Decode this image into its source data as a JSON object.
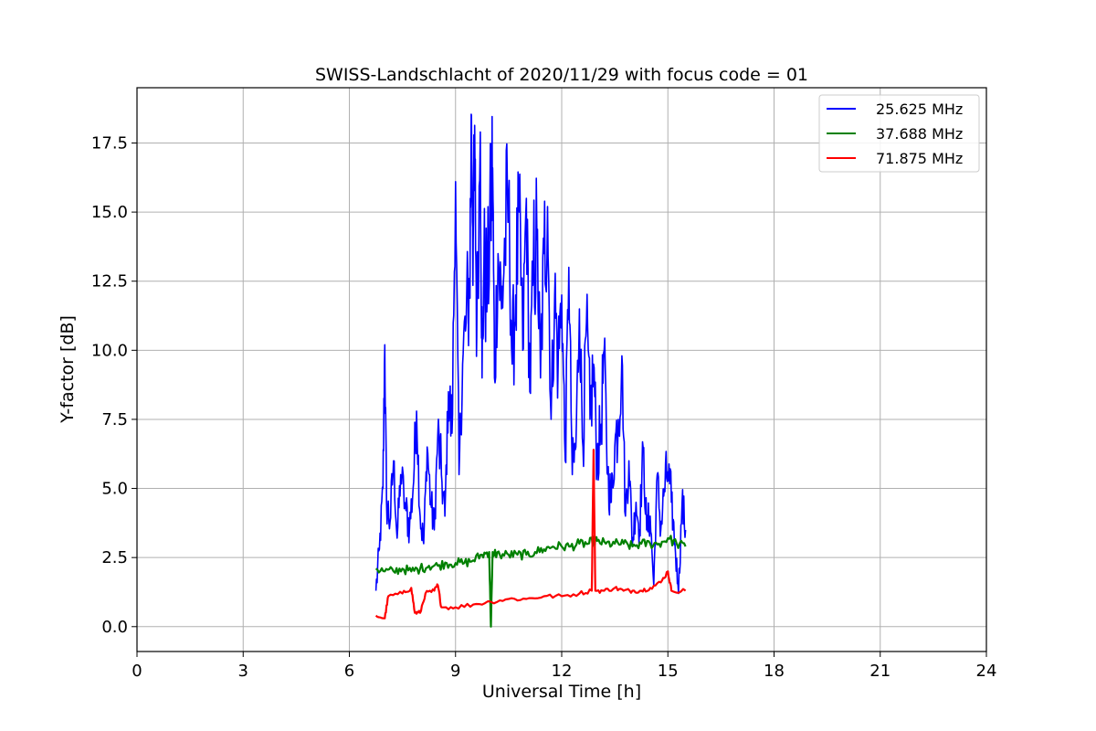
{
  "chart_data": {
    "type": "line",
    "title": "SWISS-Landschlacht of 2020/11/29 with focus code = 01",
    "xlabel": "Universal Time [h]",
    "ylabel": "Y-factor [dB]",
    "xlim": [
      0,
      24
    ],
    "ylim": [
      -0.9,
      19.5
    ],
    "xticks": [
      0,
      3,
      6,
      9,
      12,
      15,
      18,
      21,
      24
    ],
    "xtick_labels": [
      "0",
      "3",
      "6",
      "9",
      "12",
      "15",
      "18",
      "21",
      "24"
    ],
    "yticks": [
      0.0,
      2.5,
      5.0,
      7.5,
      10.0,
      12.5,
      15.0,
      17.5
    ],
    "ytick_labels": [
      "0.0",
      "2.5",
      "5.0",
      "7.5",
      "10.0",
      "12.5",
      "15.0",
      "17.5"
    ],
    "grid": true,
    "legend_position": "top-right",
    "series": [
      {
        "name": "25.625 MHz",
        "color": "#0000ff",
        "x": [
          6.75,
          6.85,
          6.95,
          7.0,
          7.05,
          7.15,
          7.25,
          7.35,
          7.45,
          7.6,
          7.7,
          7.8,
          7.9,
          8.0,
          8.1,
          8.2,
          8.3,
          8.4,
          8.5,
          8.6,
          8.7,
          8.8,
          8.9,
          9.0,
          9.1,
          9.2,
          9.3,
          9.4,
          9.45,
          9.5,
          9.55,
          9.6,
          9.7,
          9.75,
          9.8,
          9.9,
          10.0,
          10.05,
          10.1,
          10.2,
          10.3,
          10.4,
          10.5,
          10.6,
          10.7,
          10.8,
          10.9,
          11.0,
          11.1,
          11.2,
          11.3,
          11.4,
          11.5,
          11.6,
          11.7,
          11.8,
          11.9,
          12.0,
          12.1,
          12.2,
          12.3,
          12.4,
          12.5,
          12.6,
          12.7,
          12.8,
          12.9,
          13.0,
          13.1,
          13.2,
          13.3,
          13.4,
          13.5,
          13.6,
          13.7,
          13.8,
          13.9,
          14.0,
          14.1,
          14.2,
          14.3,
          14.4,
          14.5,
          14.6,
          14.7,
          14.8,
          14.9,
          15.0,
          15.1,
          15.2,
          15.3,
          15.4,
          15.5
        ],
        "y": [
          1.3,
          2.8,
          5.0,
          10.2,
          4.5,
          3.8,
          6.0,
          3.2,
          5.5,
          4.2,
          3.6,
          5.0,
          7.8,
          4.0,
          3.0,
          6.5,
          4.5,
          3.5,
          7.0,
          5.5,
          4.0,
          8.5,
          7.0,
          16.1,
          5.5,
          9.5,
          11.0,
          12.5,
          18.5,
          14.0,
          16.5,
          10.5,
          17.9,
          9.0,
          13.0,
          12.0,
          15.5,
          16.6,
          9.0,
          13.5,
          11.5,
          14.0,
          15.5,
          9.5,
          12.0,
          15.0,
          10.0,
          15.5,
          8.5,
          13.0,
          14.0,
          9.0,
          13.5,
          15.2,
          7.5,
          12.0,
          9.5,
          12.0,
          6.0,
          13.0,
          5.5,
          6.5,
          11.5,
          6.5,
          11.0,
          7.5,
          9.5,
          6.0,
          7.0,
          10.0,
          5.5,
          4.5,
          6.5,
          7.5,
          9.8,
          4.0,
          6.0,
          3.0,
          4.5,
          3.5,
          6.5,
          3.5,
          4.0,
          1.5,
          5.5,
          3.5,
          5.0,
          5.6,
          4.5,
          3.0,
          1.2,
          4.5,
          3.5
        ]
      },
      {
        "name": "37.688 MHz",
        "color": "#008000",
        "x": [
          6.75,
          7.0,
          7.25,
          7.5,
          7.75,
          8.0,
          8.25,
          8.5,
          8.75,
          9.0,
          9.25,
          9.5,
          9.75,
          9.95,
          10.0,
          10.05,
          10.25,
          10.5,
          10.75,
          11.0,
          11.25,
          11.5,
          11.75,
          12.0,
          12.25,
          12.5,
          12.75,
          12.9,
          13.0,
          13.25,
          13.5,
          13.75,
          14.0,
          14.25,
          14.5,
          14.75,
          15.0,
          15.25,
          15.5
        ],
        "y": [
          2.1,
          2.0,
          2.0,
          2.1,
          2.0,
          2.1,
          2.2,
          2.2,
          2.3,
          2.3,
          2.3,
          2.4,
          2.6,
          2.7,
          0.0,
          2.7,
          2.6,
          2.6,
          2.6,
          2.6,
          2.7,
          2.8,
          2.9,
          2.9,
          2.9,
          3.0,
          3.0,
          3.1,
          3.1,
          3.0,
          3.0,
          3.0,
          2.9,
          3.0,
          3.0,
          3.0,
          3.2,
          3.0,
          2.9
        ]
      },
      {
        "name": "71.875 MHz",
        "color": "#ff0000",
        "x": [
          6.75,
          7.0,
          7.1,
          7.5,
          7.75,
          7.85,
          8.0,
          8.15,
          8.4,
          8.5,
          8.6,
          9.0,
          9.5,
          10.0,
          10.5,
          11.0,
          11.5,
          12.0,
          12.5,
          12.85,
          12.9,
          12.95,
          13.2,
          13.5,
          13.75,
          14.0,
          14.25,
          14.5,
          14.8,
          15.0,
          15.1,
          15.5
        ],
        "y": [
          0.4,
          0.3,
          1.1,
          1.2,
          1.4,
          0.5,
          0.5,
          1.2,
          1.3,
          1.5,
          0.7,
          0.7,
          0.8,
          0.9,
          1.0,
          1.0,
          1.1,
          1.1,
          1.2,
          1.3,
          6.4,
          1.3,
          1.3,
          1.4,
          1.3,
          1.3,
          1.3,
          1.4,
          1.6,
          2.0,
          1.3,
          1.3
        ]
      }
    ]
  }
}
